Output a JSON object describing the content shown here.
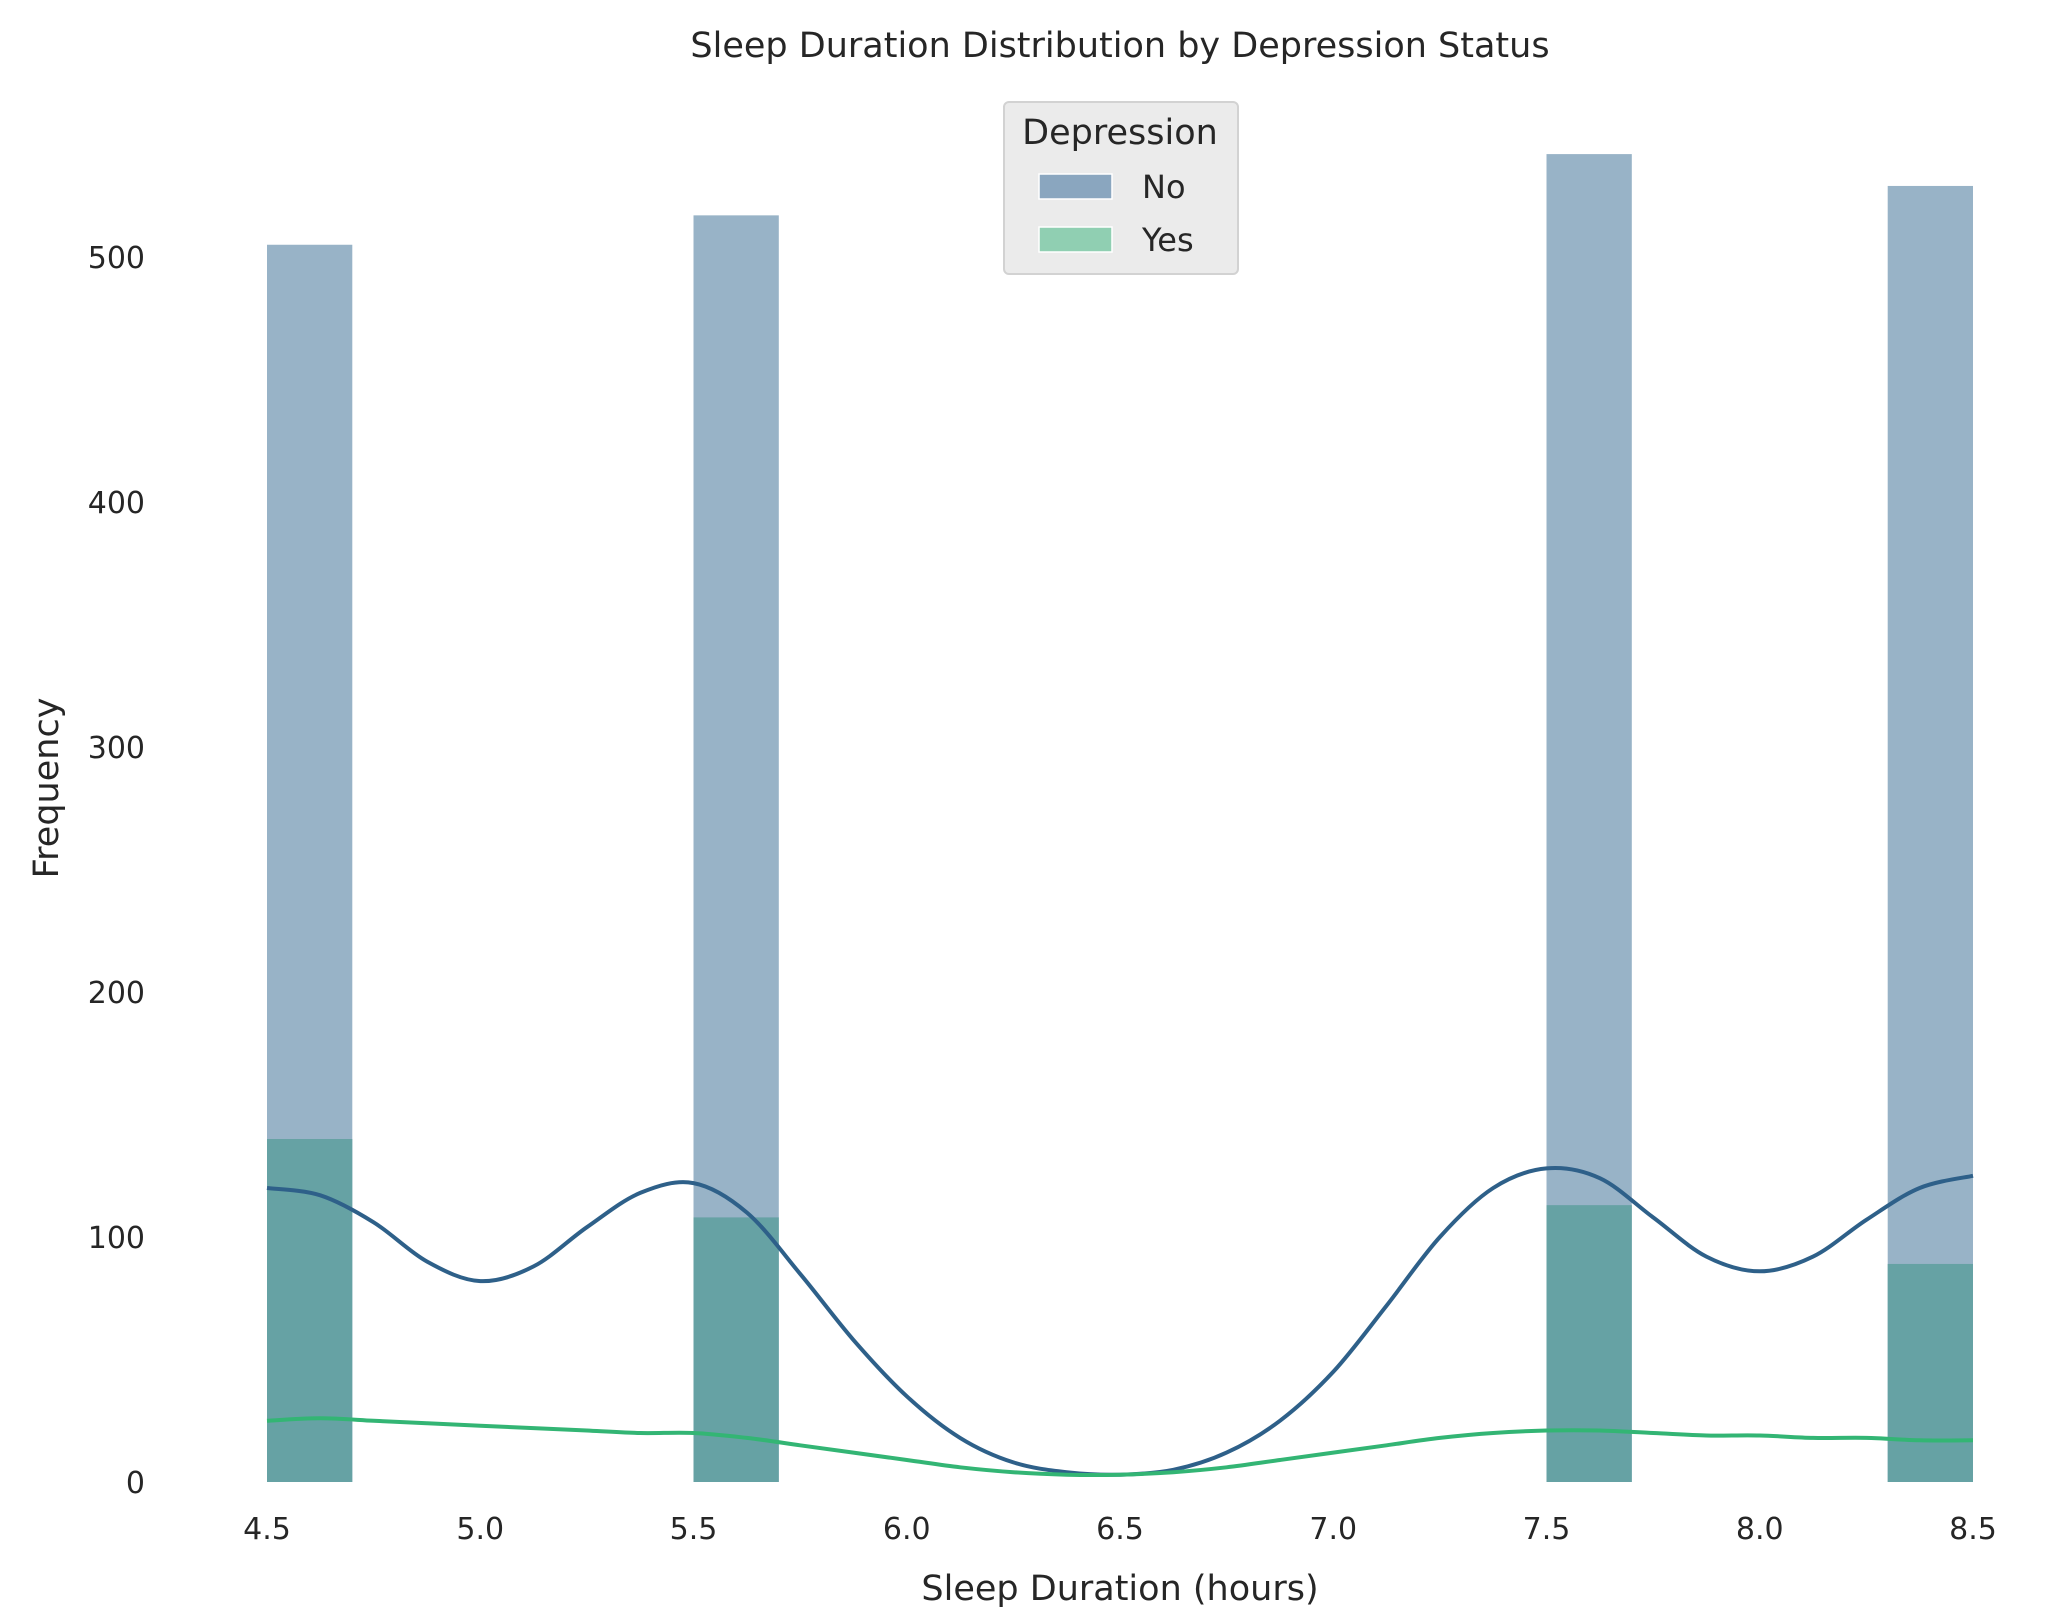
{
  "chart_data": {
    "type": "bar",
    "title": "Sleep Duration Distribution by Depression Status",
    "xlabel": "Sleep Duration (hours)",
    "ylabel": "Frequency",
    "xlim": [
      4.5,
      8.5
    ],
    "ylim": [
      0,
      550
    ],
    "x_ticks": [
      "4.5",
      "5.0",
      "5.5",
      "6.0",
      "6.5",
      "7.0",
      "7.5",
      "8.0",
      "8.5"
    ],
    "y_ticks": [
      "0",
      "100",
      "200",
      "300",
      "400",
      "500"
    ],
    "grid": false,
    "legend": {
      "title": "Depression",
      "placement": "top-center",
      "entries": [
        "No",
        "Yes"
      ]
    },
    "bins": [
      {
        "x_start": 4.5,
        "x_end": 4.7
      },
      {
        "x_start": 5.5,
        "x_end": 5.7
      },
      {
        "x_start": 7.5,
        "x_end": 7.7
      },
      {
        "x_start": 8.3,
        "x_end": 8.5
      }
    ],
    "series": [
      {
        "name": "No",
        "color": "#6b8fae",
        "bar_values": [
          505,
          517,
          542,
          529
        ],
        "kde": {
          "x": [
            4.5,
            4.625,
            4.75,
            4.875,
            5.0,
            5.125,
            5.25,
            5.375,
            5.5,
            5.625,
            5.75,
            5.875,
            6.0,
            6.125,
            6.25,
            6.375,
            6.5,
            6.625,
            6.75,
            6.875,
            7.0,
            7.125,
            7.25,
            7.375,
            7.5,
            7.625,
            7.75,
            7.875,
            8.0,
            8.125,
            8.25,
            8.375,
            8.5
          ],
          "y": [
            120,
            117,
            106,
            90,
            82,
            88,
            104,
            118,
            122,
            110,
            85,
            58,
            35,
            18,
            8,
            4,
            3,
            5,
            12,
            25,
            45,
            72,
            100,
            120,
            128,
            124,
            108,
            92,
            86,
            92,
            107,
            120,
            125
          ]
        }
      },
      {
        "name": "Yes",
        "color": "#3cb878",
        "bar_values": [
          140,
          108,
          113,
          89
        ],
        "kde": {
          "x": [
            4.5,
            4.625,
            4.75,
            4.875,
            5.0,
            5.125,
            5.25,
            5.375,
            5.5,
            5.625,
            5.75,
            5.875,
            6.0,
            6.125,
            6.25,
            6.375,
            6.5,
            6.625,
            6.75,
            6.875,
            7.0,
            7.125,
            7.25,
            7.375,
            7.5,
            7.625,
            7.75,
            7.875,
            8.0,
            8.125,
            8.25,
            8.375,
            8.5
          ],
          "y": [
            25,
            26,
            25,
            24,
            23,
            22,
            21,
            20,
            20,
            18,
            15,
            12,
            9,
            6,
            4,
            3,
            3,
            4,
            6,
            9,
            12,
            15,
            18,
            20,
            21,
            21,
            20,
            19,
            19,
            18,
            18,
            17,
            17
          ]
        }
      }
    ],
    "colors": {
      "no_bar": "#98b3c7",
      "yes_overlap_bar": "#66a2a4",
      "no_kde_line": "#2e6089",
      "yes_kde_line": "#33b574",
      "legend_patch_no": "#8aa6bf",
      "legend_patch_yes": "#90cfb2",
      "legend_bg": "#ebebeb"
    }
  }
}
